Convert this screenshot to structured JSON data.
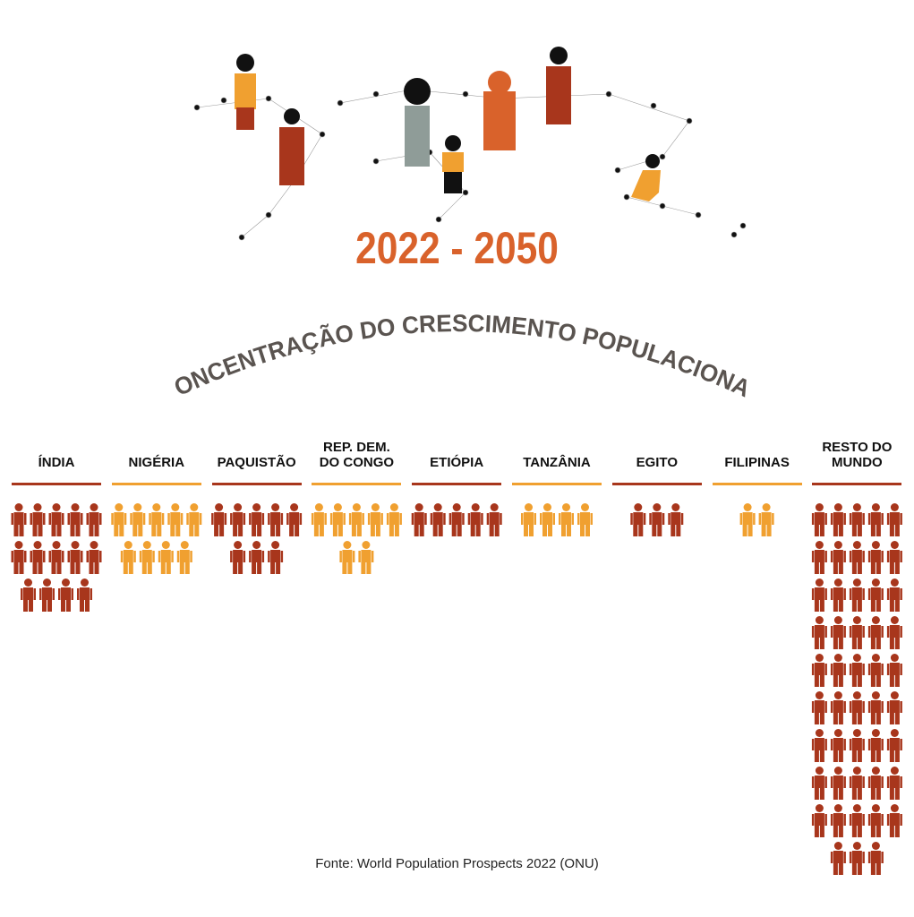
{
  "chart_data": {
    "type": "pictogram",
    "title": "2022 - 2050",
    "subtitle": "CONCENTRAÇÃO DO CRESCIMENTO POPULACIONAL",
    "categories": [
      "ÍNDIA",
      "NIGÉRIA",
      "PAQUISTÃO",
      "REP. DEM. DO CONGO",
      "ETIÓPIA",
      "TANZÂNIA",
      "EGITO",
      "FILIPINAS",
      "RESTO DO MUNDO"
    ],
    "values": [
      14,
      9,
      8,
      7,
      5,
      4,
      3,
      2,
      48
    ],
    "colors": [
      "#a8361c",
      "#f0a030",
      "#a8361c",
      "#f0a030",
      "#a8361c",
      "#f0a030",
      "#a8361c",
      "#f0a030",
      "#a8361c"
    ],
    "source": "Fonte: World Population Prospects 2022 (ONU)"
  }
}
